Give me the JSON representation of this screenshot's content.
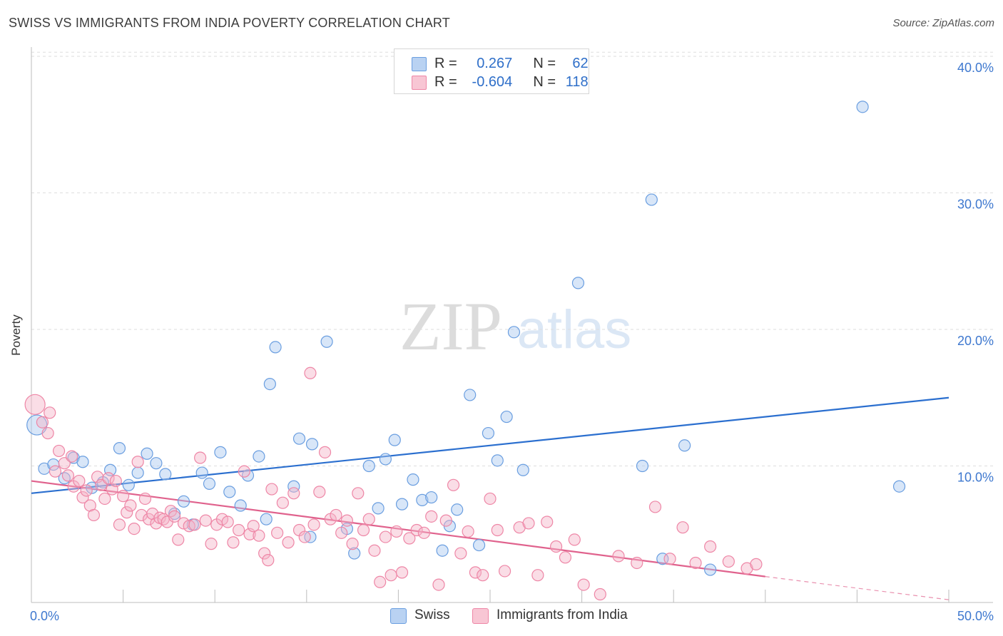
{
  "title": "SWISS VS IMMIGRANTS FROM INDIA POVERTY CORRELATION CHART",
  "source": "Source: ZipAtlas.com",
  "watermark": {
    "zip": "ZIP",
    "atlas": "atlas"
  },
  "legend": {
    "rows": [
      {
        "r_label": "R =",
        "r_value": "0.267",
        "n_label": "N =",
        "n_value": "62",
        "color": "#a9c8f0"
      },
      {
        "r_label": "R =",
        "r_value": "-0.604",
        "n_label": "N =",
        "n_value": "118",
        "color": "#f5b4c7"
      }
    ]
  },
  "bottom_legend": [
    {
      "label": "Swiss",
      "color": "#a9c8f0"
    },
    {
      "label": "Immigrants from India",
      "color": "#f5b4c7"
    }
  ],
  "chart_data": {
    "type": "scatter",
    "title": "SWISS VS IMMIGRANTS FROM INDIA POVERTY CORRELATION CHART",
    "xlabel": "",
    "ylabel": "Poverty",
    "xlim": [
      0,
      50
    ],
    "ylim": [
      0,
      42
    ],
    "x_tick_labels": [
      "0.0%",
      "50.0%"
    ],
    "y_ticks": [
      10,
      20,
      30,
      40
    ],
    "y_tick_labels": [
      "10.0%",
      "20.0%",
      "30.0%",
      "40.0%"
    ],
    "grid": true,
    "legend_position": "top-center",
    "series": [
      {
        "name": "Swiss",
        "color": "#6a9ee0",
        "fill": "#a9c8f0",
        "trend": {
          "x": [
            0,
            50
          ],
          "y": [
            8.0,
            15.0
          ],
          "color": "#2b6fcf"
        },
        "points": [
          {
            "x": 0.3,
            "y": 13.0,
            "big": true
          },
          {
            "x": 0.7,
            "y": 9.8
          },
          {
            "x": 1.2,
            "y": 10.1
          },
          {
            "x": 1.8,
            "y": 9.1
          },
          {
            "x": 2.3,
            "y": 10.6
          },
          {
            "x": 2.8,
            "y": 10.3
          },
          {
            "x": 3.3,
            "y": 8.4
          },
          {
            "x": 3.9,
            "y": 8.8
          },
          {
            "x": 4.3,
            "y": 9.7
          },
          {
            "x": 4.8,
            "y": 11.3
          },
          {
            "x": 5.3,
            "y": 8.6
          },
          {
            "x": 5.8,
            "y": 9.5
          },
          {
            "x": 6.3,
            "y": 10.9
          },
          {
            "x": 6.8,
            "y": 10.2
          },
          {
            "x": 7.3,
            "y": 9.4
          },
          {
            "x": 7.8,
            "y": 6.5
          },
          {
            "x": 8.3,
            "y": 7.4
          },
          {
            "x": 8.8,
            "y": 5.7
          },
          {
            "x": 9.3,
            "y": 9.5
          },
          {
            "x": 9.7,
            "y": 8.7
          },
          {
            "x": 10.3,
            "y": 11.0
          },
          {
            "x": 10.8,
            "y": 8.1
          },
          {
            "x": 11.4,
            "y": 7.1
          },
          {
            "x": 11.8,
            "y": 9.3
          },
          {
            "x": 12.4,
            "y": 10.7
          },
          {
            "x": 12.8,
            "y": 6.1
          },
          {
            "x": 13.0,
            "y": 16.0
          },
          {
            "x": 13.3,
            "y": 18.7
          },
          {
            "x": 14.3,
            "y": 8.5
          },
          {
            "x": 14.6,
            "y": 12.0
          },
          {
            "x": 15.2,
            "y": 4.8
          },
          {
            "x": 15.3,
            "y": 11.6
          },
          {
            "x": 16.1,
            "y": 19.1
          },
          {
            "x": 17.2,
            "y": 5.4
          },
          {
            "x": 17.6,
            "y": 3.6
          },
          {
            "x": 18.4,
            "y": 10.0
          },
          {
            "x": 18.9,
            "y": 6.9
          },
          {
            "x": 19.3,
            "y": 10.5
          },
          {
            "x": 19.8,
            "y": 11.9
          },
          {
            "x": 20.2,
            "y": 7.2
          },
          {
            "x": 20.8,
            "y": 9.0
          },
          {
            "x": 21.3,
            "y": 7.5
          },
          {
            "x": 21.8,
            "y": 7.7
          },
          {
            "x": 22.4,
            "y": 3.8
          },
          {
            "x": 22.8,
            "y": 5.6
          },
          {
            "x": 23.2,
            "y": 6.8
          },
          {
            "x": 23.9,
            "y": 15.2
          },
          {
            "x": 24.4,
            "y": 4.2
          },
          {
            "x": 24.9,
            "y": 12.4
          },
          {
            "x": 25.4,
            "y": 10.4
          },
          {
            "x": 25.9,
            "y": 13.6
          },
          {
            "x": 26.3,
            "y": 19.8
          },
          {
            "x": 26.8,
            "y": 9.7
          },
          {
            "x": 29.8,
            "y": 23.4
          },
          {
            "x": 33.3,
            "y": 10.0
          },
          {
            "x": 33.8,
            "y": 29.5
          },
          {
            "x": 34.4,
            "y": 3.2
          },
          {
            "x": 35.6,
            "y": 11.5
          },
          {
            "x": 37.0,
            "y": 2.4
          },
          {
            "x": 45.3,
            "y": 36.3
          },
          {
            "x": 47.3,
            "y": 8.5
          }
        ]
      },
      {
        "name": "Immigrants from India",
        "color": "#ee86a6",
        "fill": "#f5b4c7",
        "trend": {
          "x": [
            0,
            40
          ],
          "y": [
            8.9,
            1.9
          ],
          "dash_x": [
            40,
            50
          ],
          "dash_y": [
            1.9,
            0.2
          ],
          "color": "#e0628d"
        },
        "points": [
          {
            "x": 0.2,
            "y": 14.5,
            "big": true
          },
          {
            "x": 0.6,
            "y": 13.2
          },
          {
            "x": 0.9,
            "y": 12.4
          },
          {
            "x": 1.0,
            "y": 13.9
          },
          {
            "x": 1.3,
            "y": 9.6
          },
          {
            "x": 1.5,
            "y": 11.1
          },
          {
            "x": 1.8,
            "y": 10.2
          },
          {
            "x": 2.0,
            "y": 9.3
          },
          {
            "x": 2.2,
            "y": 10.7
          },
          {
            "x": 2.3,
            "y": 8.5
          },
          {
            "x": 2.6,
            "y": 8.9
          },
          {
            "x": 2.8,
            "y": 7.7
          },
          {
            "x": 3.0,
            "y": 8.2
          },
          {
            "x": 3.2,
            "y": 7.1
          },
          {
            "x": 3.4,
            "y": 6.4
          },
          {
            "x": 3.6,
            "y": 9.2
          },
          {
            "x": 3.8,
            "y": 8.6
          },
          {
            "x": 4.0,
            "y": 7.6
          },
          {
            "x": 4.2,
            "y": 9.1
          },
          {
            "x": 4.4,
            "y": 8.3
          },
          {
            "x": 4.6,
            "y": 8.9
          },
          {
            "x": 4.8,
            "y": 5.7
          },
          {
            "x": 5.0,
            "y": 7.8
          },
          {
            "x": 5.2,
            "y": 6.6
          },
          {
            "x": 5.4,
            "y": 7.1
          },
          {
            "x": 5.6,
            "y": 5.4
          },
          {
            "x": 5.8,
            "y": 10.3
          },
          {
            "x": 6.0,
            "y": 6.4
          },
          {
            "x": 6.2,
            "y": 7.6
          },
          {
            "x": 6.4,
            "y": 6.1
          },
          {
            "x": 6.6,
            "y": 6.5
          },
          {
            "x": 6.8,
            "y": 5.8
          },
          {
            "x": 7.0,
            "y": 6.2
          },
          {
            "x": 7.2,
            "y": 6.1
          },
          {
            "x": 7.4,
            "y": 5.9
          },
          {
            "x": 7.6,
            "y": 6.7
          },
          {
            "x": 7.8,
            "y": 6.3
          },
          {
            "x": 8.0,
            "y": 4.6
          },
          {
            "x": 8.3,
            "y": 5.8
          },
          {
            "x": 8.6,
            "y": 5.6
          },
          {
            "x": 8.9,
            "y": 5.7
          },
          {
            "x": 9.2,
            "y": 10.6
          },
          {
            "x": 9.5,
            "y": 6.0
          },
          {
            "x": 9.8,
            "y": 4.3
          },
          {
            "x": 10.1,
            "y": 5.7
          },
          {
            "x": 10.4,
            "y": 6.1
          },
          {
            "x": 10.7,
            "y": 5.9
          },
          {
            "x": 11.0,
            "y": 4.4
          },
          {
            "x": 11.3,
            "y": 5.3
          },
          {
            "x": 11.6,
            "y": 9.6
          },
          {
            "x": 11.9,
            "y": 5.0
          },
          {
            "x": 12.1,
            "y": 5.6
          },
          {
            "x": 12.4,
            "y": 4.9
          },
          {
            "x": 12.7,
            "y": 3.6
          },
          {
            "x": 12.9,
            "y": 3.1
          },
          {
            "x": 13.1,
            "y": 8.3
          },
          {
            "x": 13.4,
            "y": 5.1
          },
          {
            "x": 13.7,
            "y": 7.3
          },
          {
            "x": 14.0,
            "y": 4.4
          },
          {
            "x": 14.3,
            "y": 8.0
          },
          {
            "x": 14.6,
            "y": 5.3
          },
          {
            "x": 14.9,
            "y": 4.8
          },
          {
            "x": 15.2,
            "y": 16.8
          },
          {
            "x": 15.4,
            "y": 5.7
          },
          {
            "x": 15.7,
            "y": 8.1
          },
          {
            "x": 16.0,
            "y": 11.0
          },
          {
            "x": 16.3,
            "y": 6.1
          },
          {
            "x": 16.6,
            "y": 6.4
          },
          {
            "x": 16.9,
            "y": 5.1
          },
          {
            "x": 17.2,
            "y": 6.0
          },
          {
            "x": 17.5,
            "y": 4.3
          },
          {
            "x": 17.8,
            "y": 8.0
          },
          {
            "x": 18.1,
            "y": 5.3
          },
          {
            "x": 18.4,
            "y": 6.1
          },
          {
            "x": 18.7,
            "y": 3.8
          },
          {
            "x": 19.0,
            "y": 1.5
          },
          {
            "x": 19.3,
            "y": 4.8
          },
          {
            "x": 19.6,
            "y": 2.0
          },
          {
            "x": 19.9,
            "y": 5.2
          },
          {
            "x": 20.2,
            "y": 2.2
          },
          {
            "x": 20.6,
            "y": 4.7
          },
          {
            "x": 21.0,
            "y": 5.3
          },
          {
            "x": 21.4,
            "y": 5.1
          },
          {
            "x": 21.8,
            "y": 6.3
          },
          {
            "x": 22.2,
            "y": 1.3
          },
          {
            "x": 22.6,
            "y": 6.0
          },
          {
            "x": 23.0,
            "y": 8.6
          },
          {
            "x": 23.4,
            "y": 3.6
          },
          {
            "x": 23.8,
            "y": 5.2
          },
          {
            "x": 24.2,
            "y": 2.2
          },
          {
            "x": 24.6,
            "y": 2.0
          },
          {
            "x": 25.0,
            "y": 7.6
          },
          {
            "x": 25.4,
            "y": 5.3
          },
          {
            "x": 25.8,
            "y": 2.3
          },
          {
            "x": 26.6,
            "y": 5.5
          },
          {
            "x": 27.1,
            "y": 5.8
          },
          {
            "x": 27.6,
            "y": 2.0
          },
          {
            "x": 28.1,
            "y": 5.9
          },
          {
            "x": 28.6,
            "y": 4.1
          },
          {
            "x": 29.1,
            "y": 3.3
          },
          {
            "x": 29.6,
            "y": 4.6
          },
          {
            "x": 30.1,
            "y": 1.3
          },
          {
            "x": 31.0,
            "y": 0.6
          },
          {
            "x": 32.0,
            "y": 3.4
          },
          {
            "x": 33.0,
            "y": 2.9
          },
          {
            "x": 34.0,
            "y": 7.0
          },
          {
            "x": 34.8,
            "y": 3.2
          },
          {
            "x": 35.5,
            "y": 5.5
          },
          {
            "x": 36.2,
            "y": 2.9
          },
          {
            "x": 37.0,
            "y": 4.1
          },
          {
            "x": 38.0,
            "y": 3.0
          },
          {
            "x": 39.0,
            "y": 2.5
          },
          {
            "x": 39.5,
            "y": 2.8
          }
        ]
      }
    ]
  }
}
